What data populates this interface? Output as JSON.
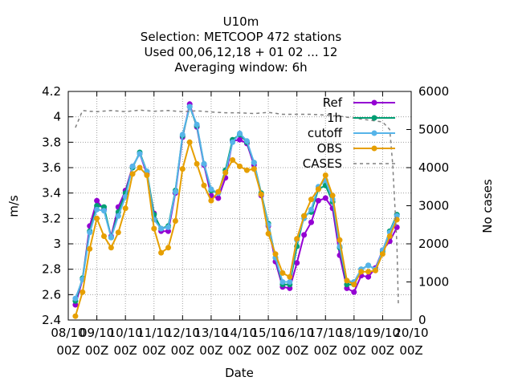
{
  "chart_data": {
    "type": "line",
    "title_lines": [
      "U10m",
      "Selection: METCOOP    472 stations",
      "Used  00,06,12,18 + 01 02 ... 12",
      "Averaging window:  6h"
    ],
    "xlabel": "Date",
    "ylabel": "m/s",
    "y2label": "No cases",
    "ylim": [
      2.4,
      4.2
    ],
    "y2lim": [
      0,
      6000
    ],
    "yticks": [
      "2.4",
      "2.6",
      "2.8",
      "3",
      "3.2",
      "3.4",
      "3.6",
      "3.8",
      "4",
      "4.2"
    ],
    "y2ticks": [
      "0",
      "1000",
      "2000",
      "3000",
      "4000",
      "5000",
      "6000"
    ],
    "xlim": [
      0,
      12
    ],
    "xticks": [
      {
        "x": 0,
        "line1": "08/10",
        "line2": "00Z"
      },
      {
        "x": 1,
        "line1": "09/10",
        "line2": "00Z"
      },
      {
        "x": 2,
        "line1": "10/10",
        "line2": "00Z"
      },
      {
        "x": 3,
        "line1": "11/10",
        "line2": "00Z"
      },
      {
        "x": 4,
        "line1": "12/10",
        "line2": "00Z"
      },
      {
        "x": 5,
        "line1": "13/10",
        "line2": "00Z"
      },
      {
        "x": 6,
        "line1": "14/10",
        "line2": "00Z"
      },
      {
        "x": 7,
        "line1": "15/10",
        "line2": "00Z"
      },
      {
        "x": 8,
        "line1": "16/10",
        "line2": "00Z"
      },
      {
        "x": 9,
        "line1": "17/10",
        "line2": "00Z"
      },
      {
        "x": 10,
        "line1": "18/10",
        "line2": "00Z"
      },
      {
        "x": 11,
        "line1": "19/10",
        "line2": "00Z"
      },
      {
        "x": 12,
        "line1": "20/10",
        "line2": "00Z"
      }
    ],
    "grid": true,
    "legend_position": "top-right",
    "x": [
      0.25,
      0.5,
      0.75,
      1.0,
      1.25,
      1.5,
      1.75,
      2.0,
      2.25,
      2.5,
      2.75,
      3.0,
      3.25,
      3.5,
      3.75,
      4.0,
      4.25,
      4.5,
      4.75,
      5.0,
      5.25,
      5.5,
      5.75,
      6.0,
      6.25,
      6.5,
      6.75,
      7.0,
      7.25,
      7.5,
      7.75,
      8.0,
      8.25,
      8.5,
      8.75,
      9.0,
      9.25,
      9.5,
      9.75,
      10.0,
      10.25,
      10.5,
      10.75,
      11.0,
      11.25,
      11.5
    ],
    "series": [
      {
        "name": "Ref",
        "color": "#9400d3",
        "marker": "circle",
        "values": [
          2.52,
          2.72,
          3.14,
          3.34,
          3.27,
          3.06,
          3.29,
          3.42,
          3.61,
          3.71,
          3.55,
          3.24,
          3.1,
          3.1,
          3.4,
          3.84,
          4.1,
          3.92,
          3.62,
          3.38,
          3.36,
          3.52,
          3.81,
          3.82,
          3.79,
          3.62,
          3.38,
          3.14,
          2.86,
          2.66,
          2.65,
          2.85,
          3.07,
          3.17,
          3.34,
          3.36,
          3.28,
          2.91,
          2.65,
          2.62,
          2.75,
          2.74,
          2.81,
          2.95,
          3.02,
          3.13
        ]
      },
      {
        "name": "1h",
        "color": "#009e73",
        "marker": "circle",
        "values": [
          2.55,
          2.73,
          3.1,
          3.3,
          3.29,
          3.05,
          3.25,
          3.4,
          3.6,
          3.72,
          3.57,
          3.23,
          3.12,
          3.14,
          3.42,
          3.85,
          4.08,
          3.93,
          3.63,
          3.42,
          3.4,
          3.58,
          3.82,
          3.86,
          3.8,
          3.64,
          3.4,
          3.16,
          2.89,
          2.68,
          2.68,
          2.98,
          3.22,
          3.25,
          3.43,
          3.46,
          3.33,
          2.97,
          2.68,
          2.68,
          2.8,
          2.83,
          2.8,
          2.94,
          3.1,
          3.23
        ]
      },
      {
        "name": "cutoff",
        "color": "#56b4e9",
        "marker": "circle",
        "values": [
          2.57,
          2.72,
          3.09,
          3.27,
          3.26,
          3.05,
          3.22,
          3.37,
          3.61,
          3.71,
          3.57,
          3.19,
          3.12,
          3.13,
          3.41,
          3.86,
          4.08,
          3.94,
          3.63,
          3.43,
          3.4,
          3.56,
          3.8,
          3.87,
          3.81,
          3.64,
          3.39,
          3.15,
          2.89,
          2.7,
          2.7,
          3.03,
          3.2,
          3.27,
          3.45,
          3.5,
          3.35,
          2.98,
          2.71,
          2.7,
          2.8,
          2.83,
          2.8,
          2.95,
          3.09,
          3.22
        ]
      },
      {
        "name": "OBS",
        "color": "#e69f00",
        "marker": "circle",
        "values": [
          2.43,
          2.62,
          2.96,
          3.2,
          3.06,
          2.97,
          3.09,
          3.28,
          3.55,
          3.6,
          3.54,
          3.12,
          2.93,
          2.97,
          3.18,
          3.59,
          3.8,
          3.63,
          3.46,
          3.34,
          3.41,
          3.56,
          3.66,
          3.61,
          3.58,
          3.59,
          3.39,
          3.08,
          2.92,
          2.77,
          2.74,
          3.04,
          3.22,
          3.35,
          3.43,
          3.54,
          3.38,
          3.03,
          2.71,
          2.68,
          2.78,
          2.78,
          2.79,
          2.92,
          3.06,
          3.19
        ]
      },
      {
        "name": "CASES",
        "color": "#808080",
        "marker": "none",
        "dashed": true,
        "axis": "y2",
        "x": [
          0.25,
          0.5,
          0.75,
          1.0,
          1.5,
          2.0,
          2.5,
          3.0,
          3.5,
          4.0,
          4.5,
          5.0,
          5.5,
          6.0,
          6.5,
          7.0,
          7.5,
          8.0,
          8.5,
          9.0,
          9.5,
          10.0,
          10.5,
          11.0,
          11.25,
          11.35,
          11.5,
          11.55
        ],
        "values": [
          5050,
          5500,
          5480,
          5470,
          5500,
          5470,
          5510,
          5480,
          5500,
          5470,
          5490,
          5460,
          5440,
          5440,
          5420,
          5450,
          5400,
          5400,
          5400,
          5380,
          5350,
          5300,
          5250,
          5200,
          5000,
          4100,
          2000,
          400
        ]
      }
    ]
  }
}
